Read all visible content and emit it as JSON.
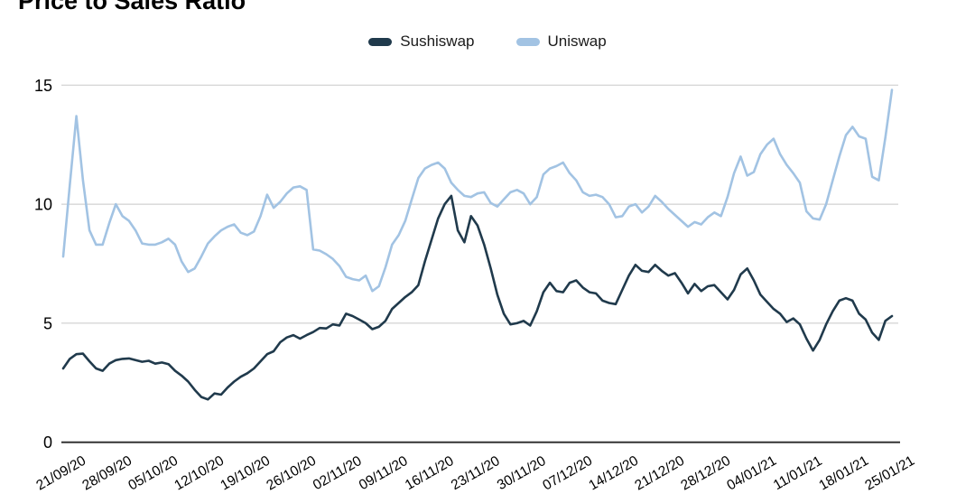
{
  "page": {
    "title": "Price to Sales Ratio"
  },
  "legend": {
    "items": [
      {
        "label": "Sushiswap",
        "color": "#203a4c"
      },
      {
        "label": "Uniswap",
        "color": "#a2c3e3"
      }
    ]
  },
  "colors": {
    "background": "#ffffff",
    "gridline": "#c8c8c8",
    "axis_line": "#333333",
    "tick_text": "#000000",
    "sushiswap": "#203a4c",
    "uniswap": "#a2c3e3"
  },
  "chart_data": {
    "type": "line",
    "title": "Price to Sales Ratio",
    "legend_position": "top",
    "grid": "horizontal",
    "y_axis": {
      "ticks": [
        0,
        5,
        10,
        15
      ],
      "range": [
        0,
        15
      ]
    },
    "x_axis": {
      "tick_labels": [
        "21/09/20",
        "28/09/20",
        "05/10/20",
        "12/10/20",
        "19/10/20",
        "26/10/20",
        "02/11/20",
        "09/11/20",
        "16/11/20",
        "23/11/20",
        "30/11/20",
        "07/12/20",
        "14/12/20",
        "21/12/20",
        "28/12/20",
        "04/01/21",
        "11/01/21",
        "18/01/21",
        "25/01/21"
      ],
      "points_per_tick": 7
    },
    "series": [
      {
        "name": "Sushiswap",
        "color": "#203a4c",
        "values": [
          3.1,
          3.5,
          3.7,
          3.72,
          3.4,
          3.1,
          3.0,
          3.3,
          3.45,
          3.5,
          3.52,
          3.45,
          3.38,
          3.42,
          3.3,
          3.35,
          3.28,
          3.0,
          2.8,
          2.55,
          2.2,
          1.9,
          1.8,
          2.05,
          2.0,
          2.3,
          2.55,
          2.75,
          2.9,
          3.1,
          3.4,
          3.7,
          3.82,
          4.2,
          4.4,
          4.5,
          4.35,
          4.5,
          4.63,
          4.8,
          4.78,
          4.95,
          4.9,
          5.4,
          5.3,
          5.15,
          5.0,
          4.75,
          4.85,
          5.1,
          5.6,
          5.85,
          6.1,
          6.3,
          6.6,
          7.6,
          8.5,
          9.4,
          10.0,
          10.35,
          8.9,
          8.4,
          9.5,
          9.1,
          8.3,
          7.3,
          6.2,
          5.4,
          4.95,
          5.0,
          5.1,
          4.9,
          5.5,
          6.3,
          6.7,
          6.35,
          6.3,
          6.7,
          6.8,
          6.5,
          6.3,
          6.25,
          5.95,
          5.85,
          5.8,
          6.4,
          7.0,
          7.45,
          7.2,
          7.15,
          7.45,
          7.2,
          7.0,
          7.1,
          6.7,
          6.25,
          6.65,
          6.35,
          6.55,
          6.6,
          6.3,
          6.0,
          6.4,
          7.05,
          7.3,
          6.8,
          6.2,
          5.9,
          5.6,
          5.4,
          5.05,
          5.2,
          4.95,
          4.35,
          3.85,
          4.3,
          4.95,
          5.5,
          5.95,
          6.05,
          5.95,
          5.4,
          5.15,
          4.6,
          4.3,
          5.1,
          5.3
        ]
      },
      {
        "name": "Uniswap",
        "color": "#a2c3e3",
        "values": [
          7.8,
          10.8,
          13.7,
          11.0,
          8.9,
          8.3,
          8.3,
          9.2,
          10.0,
          9.5,
          9.3,
          8.9,
          8.35,
          8.3,
          8.3,
          8.4,
          8.55,
          8.3,
          7.6,
          7.15,
          7.3,
          7.8,
          8.35,
          8.65,
          8.9,
          9.05,
          9.15,
          8.8,
          8.7,
          8.85,
          9.5,
          10.4,
          9.85,
          10.1,
          10.45,
          10.7,
          10.75,
          10.6,
          8.1,
          8.05,
          7.9,
          7.7,
          7.4,
          6.95,
          6.85,
          6.8,
          7.0,
          6.35,
          6.55,
          7.35,
          8.3,
          8.7,
          9.3,
          10.2,
          11.1,
          11.5,
          11.65,
          11.75,
          11.5,
          10.9,
          10.6,
          10.35,
          10.3,
          10.45,
          10.5,
          10.05,
          9.9,
          10.2,
          10.5,
          10.6,
          10.45,
          10.0,
          10.3,
          11.25,
          11.5,
          11.6,
          11.75,
          11.3,
          11.0,
          10.5,
          10.35,
          10.4,
          10.3,
          10.0,
          9.45,
          9.5,
          9.9,
          10.0,
          9.65,
          9.9,
          10.35,
          10.1,
          9.8,
          9.55,
          9.3,
          9.05,
          9.25,
          9.15,
          9.45,
          9.65,
          9.5,
          10.3,
          11.3,
          12.0,
          11.2,
          11.35,
          12.1,
          12.5,
          12.75,
          12.1,
          11.65,
          11.3,
          10.9,
          9.7,
          9.4,
          9.35,
          10.0,
          11.0,
          12.0,
          12.9,
          13.25,
          12.85,
          12.75,
          11.15,
          11.0,
          12.8,
          14.8
        ]
      }
    ]
  }
}
